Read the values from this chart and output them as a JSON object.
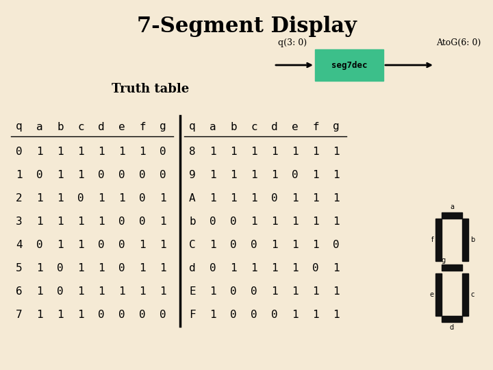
{
  "title": "7-Segment Display",
  "bg_color": "#f5ead5",
  "truth_table_label": "Truth table",
  "left_table": {
    "header": [
      "q",
      "a",
      "b",
      "c",
      "d",
      "e",
      "f",
      "g"
    ],
    "rows": [
      [
        "0",
        "1",
        "1",
        "1",
        "1",
        "1",
        "1",
        "0"
      ],
      [
        "1",
        "0",
        "1",
        "1",
        "0",
        "0",
        "0",
        "0"
      ],
      [
        "2",
        "1",
        "1",
        "0",
        "1",
        "1",
        "0",
        "1"
      ],
      [
        "3",
        "1",
        "1",
        "1",
        "1",
        "0",
        "0",
        "1"
      ],
      [
        "4",
        "0",
        "1",
        "1",
        "0",
        "0",
        "1",
        "1"
      ],
      [
        "5",
        "1",
        "0",
        "1",
        "1",
        "0",
        "1",
        "1"
      ],
      [
        "6",
        "1",
        "0",
        "1",
        "1",
        "1",
        "1",
        "1"
      ],
      [
        "7",
        "1",
        "1",
        "1",
        "0",
        "0",
        "0",
        "0"
      ]
    ]
  },
  "right_table": {
    "header": [
      "q",
      "a",
      "b",
      "c",
      "d",
      "e",
      "f",
      "g"
    ],
    "rows": [
      [
        "8",
        "1",
        "1",
        "1",
        "1",
        "1",
        "1",
        "1"
      ],
      [
        "9",
        "1",
        "1",
        "1",
        "1",
        "0",
        "1",
        "1"
      ],
      [
        "A",
        "1",
        "1",
        "1",
        "0",
        "1",
        "1",
        "1"
      ],
      [
        "b",
        "0",
        "0",
        "1",
        "1",
        "1",
        "1",
        "1"
      ],
      [
        "C",
        "1",
        "0",
        "0",
        "1",
        "1",
        "1",
        "0"
      ],
      [
        "d",
        "0",
        "1",
        "1",
        "1",
        "1",
        "0",
        "1"
      ],
      [
        "E",
        "1",
        "0",
        "0",
        "1",
        "1",
        "1",
        "1"
      ],
      [
        "F",
        "1",
        "0",
        "0",
        "0",
        "1",
        "1",
        "1"
      ]
    ]
  },
  "box_color": "#3cbf8a",
  "box_text": "seg7dec",
  "arrow_left_label": "q(3: 0)",
  "arrow_right_label": "AtoG(6: 0)",
  "seg_display_color": "#111111"
}
